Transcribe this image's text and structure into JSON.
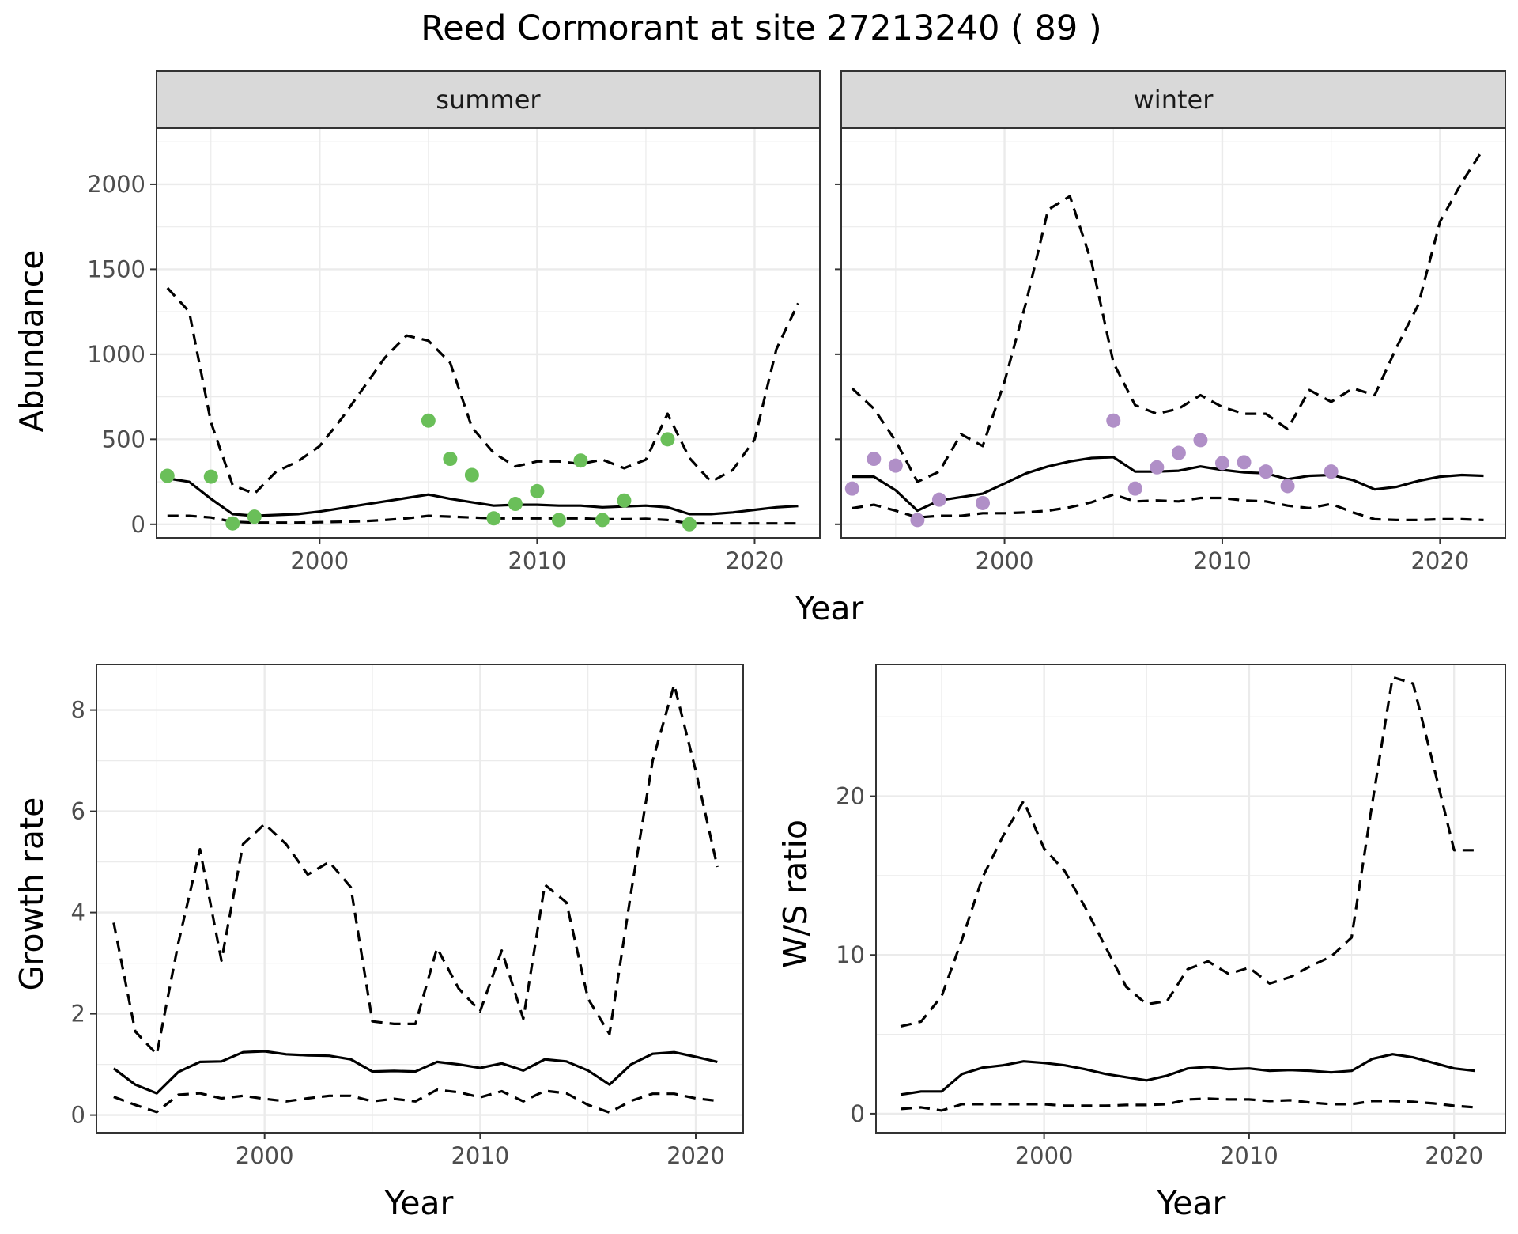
{
  "title": "Reed Cormorant at site 27213240 ( 89 )",
  "chart_data": [
    {
      "type": "line",
      "panel": "summer",
      "facet_label": "summer",
      "xlabel": "",
      "ylabel": "Abundance",
      "xlim": [
        1992.5,
        2023
      ],
      "ylim": [
        -80,
        2330
      ],
      "x_ticks": [
        2000,
        2010,
        2020
      ],
      "y_ticks": [
        0,
        500,
        1000,
        1500,
        2000
      ],
      "grid": true,
      "point_color": "#6abf59",
      "series": [
        {
          "style": "solid",
          "x": [
            1993,
            1994,
            1995,
            1996,
            1997,
            1998,
            1999,
            2000,
            2001,
            2002,
            2003,
            2004,
            2005,
            2006,
            2007,
            2008,
            2009,
            2010,
            2011,
            2012,
            2013,
            2014,
            2015,
            2016,
            2017,
            2018,
            2019,
            2020,
            2021,
            2022
          ],
          "values": [
            270,
            250,
            150,
            60,
            50,
            55,
            60,
            75,
            95,
            115,
            135,
            155,
            175,
            150,
            130,
            110,
            115,
            115,
            110,
            110,
            100,
            105,
            110,
            100,
            60,
            60,
            70,
            85,
            100,
            108
          ]
        },
        {
          "style": "dashed",
          "x": [
            1993,
            1994,
            1995,
            1996,
            1997,
            1998,
            1999,
            2000,
            2001,
            2002,
            2003,
            2004,
            2005,
            2006,
            2007,
            2008,
            2009,
            2010,
            2011,
            2012,
            2013,
            2014,
            2015,
            2016,
            2017,
            2018,
            2019,
            2020,
            2021,
            2022
          ],
          "values": [
            1390,
            1250,
            600,
            230,
            180,
            310,
            370,
            460,
            620,
            800,
            980,
            1110,
            1080,
            950,
            570,
            420,
            340,
            370,
            370,
            355,
            380,
            330,
            380,
            650,
            390,
            250,
            320,
            500,
            1030,
            1300
          ]
        },
        {
          "style": "dashed",
          "x": [
            1993,
            1994,
            1995,
            1996,
            1997,
            1998,
            1999,
            2000,
            2001,
            2002,
            2003,
            2004,
            2005,
            2006,
            2007,
            2008,
            2009,
            2010,
            2011,
            2012,
            2013,
            2014,
            2015,
            2016,
            2017,
            2018,
            2019,
            2020,
            2021,
            2022
          ],
          "values": [
            50,
            50,
            40,
            15,
            10,
            10,
            10,
            12,
            15,
            18,
            25,
            35,
            50,
            45,
            40,
            35,
            35,
            35,
            35,
            35,
            30,
            30,
            32,
            25,
            5,
            5,
            5,
            5,
            5,
            5
          ]
        }
      ],
      "points": {
        "x": [
          1993,
          1995,
          1996,
          1997,
          2005,
          2006,
          2007,
          2008,
          2009,
          2010,
          2011,
          2012,
          2013,
          2014,
          2016,
          2017
        ],
        "values": [
          285,
          280,
          5,
          45,
          610,
          385,
          290,
          35,
          120,
          195,
          25,
          375,
          25,
          140,
          500,
          0
        ]
      }
    },
    {
      "type": "line",
      "panel": "winter",
      "facet_label": "winter",
      "xlabel": "",
      "ylabel": "",
      "xlim": [
        1992.5,
        2023
      ],
      "ylim": [
        -80,
        2330
      ],
      "x_ticks": [
        2000,
        2010,
        2020
      ],
      "y_ticks": [
        0,
        500,
        1000,
        1500,
        2000
      ],
      "grid": true,
      "point_color": "#b08fc7",
      "series": [
        {
          "style": "solid",
          "x": [
            1993,
            1994,
            1995,
            1996,
            1997,
            1998,
            1999,
            2000,
            2001,
            2002,
            2003,
            2004,
            2005,
            2006,
            2007,
            2008,
            2009,
            2010,
            2011,
            2012,
            2013,
            2014,
            2015,
            2016,
            2017,
            2018,
            2019,
            2020,
            2021,
            2022
          ],
          "values": [
            280,
            280,
            200,
            80,
            140,
            160,
            180,
            240,
            300,
            340,
            370,
            390,
            395,
            310,
            310,
            315,
            340,
            320,
            305,
            300,
            265,
            285,
            290,
            260,
            205,
            220,
            255,
            280,
            290,
            285
          ]
        },
        {
          "style": "dashed",
          "x": [
            1993,
            1994,
            1995,
            1996,
            1997,
            1998,
            1999,
            2000,
            2001,
            2002,
            2003,
            2004,
            2005,
            2006,
            2007,
            2008,
            2009,
            2010,
            2011,
            2012,
            2013,
            2014,
            2015,
            2016,
            2017,
            2018,
            2019,
            2020,
            2021,
            2022
          ],
          "values": [
            800,
            680,
            490,
            250,
            310,
            530,
            460,
            840,
            1310,
            1850,
            1930,
            1540,
            950,
            700,
            650,
            680,
            760,
            690,
            650,
            650,
            560,
            790,
            720,
            800,
            760,
            1040,
            1290,
            1780,
            2010,
            2210
          ]
        },
        {
          "style": "dashed",
          "x": [
            1993,
            1994,
            1995,
            1996,
            1997,
            1998,
            1999,
            2000,
            2001,
            2002,
            2003,
            2004,
            2005,
            2006,
            2007,
            2008,
            2009,
            2010,
            2011,
            2012,
            2013,
            2014,
            2015,
            2016,
            2017,
            2018,
            2019,
            2020,
            2021,
            2022
          ],
          "values": [
            95,
            115,
            80,
            40,
            50,
            50,
            65,
            65,
            70,
            80,
            100,
            130,
            175,
            135,
            140,
            135,
            155,
            155,
            140,
            135,
            110,
            95,
            120,
            70,
            30,
            25,
            25,
            30,
            30,
            25
          ]
        }
      ],
      "points": {
        "x": [
          1993,
          1994,
          1995,
          1996,
          1997,
          1999,
          2005,
          2006,
          2007,
          2008,
          2009,
          2010,
          2011,
          2012,
          2013,
          2015
        ],
        "values": [
          210,
          385,
          345,
          25,
          145,
          125,
          610,
          210,
          335,
          420,
          495,
          360,
          365,
          310,
          225,
          310
        ]
      }
    },
    {
      "type": "line",
      "panel": "growth",
      "xlabel": "Year",
      "ylabel": "Growth rate",
      "xlim": [
        1992.2,
        2022.2
      ],
      "ylim": [
        -0.35,
        8.9
      ],
      "x_ticks": [
        2000,
        2010,
        2020
      ],
      "y_ticks": [
        0,
        2,
        4,
        6,
        8
      ],
      "grid": true,
      "series": [
        {
          "style": "solid",
          "x": [
            1993,
            1994,
            1995,
            1996,
            1997,
            1998,
            1999,
            2000,
            2001,
            2002,
            2003,
            2004,
            2005,
            2006,
            2007,
            2008,
            2009,
            2010,
            2011,
            2012,
            2013,
            2014,
            2015,
            2016,
            2017,
            2018,
            2019,
            2020,
            2021
          ],
          "values": [
            0.92,
            0.6,
            0.43,
            0.85,
            1.05,
            1.06,
            1.24,
            1.26,
            1.2,
            1.18,
            1.17,
            1.1,
            0.86,
            0.87,
            0.86,
            1.05,
            1.0,
            0.93,
            1.02,
            0.88,
            1.1,
            1.06,
            0.88,
            0.6,
            1.0,
            1.21,
            1.24,
            1.15,
            1.05
          ]
        },
        {
          "style": "dashed",
          "x": [
            1993,
            1994,
            1995,
            1996,
            1997,
            1998,
            1999,
            2000,
            2001,
            2002,
            2003,
            2004,
            2005,
            2006,
            2007,
            2008,
            2009,
            2010,
            2011,
            2012,
            2013,
            2014,
            2015,
            2016,
            2017,
            2018,
            2019,
            2020,
            2021
          ],
          "values": [
            3.8,
            1.65,
            1.2,
            3.4,
            5.25,
            3.05,
            5.35,
            5.75,
            5.35,
            4.75,
            5.0,
            4.5,
            1.85,
            1.8,
            1.8,
            3.3,
            2.5,
            2.05,
            3.25,
            1.9,
            4.55,
            4.2,
            2.3,
            1.6,
            4.4,
            7.0,
            8.5,
            6.8,
            4.9
          ]
        },
        {
          "style": "dashed",
          "x": [
            1993,
            1994,
            1995,
            1996,
            1997,
            1998,
            1999,
            2000,
            2001,
            2002,
            2003,
            2004,
            2005,
            2006,
            2007,
            2008,
            2009,
            2010,
            2011,
            2012,
            2013,
            2014,
            2015,
            2016,
            2017,
            2018,
            2019,
            2020,
            2021
          ],
          "values": [
            0.36,
            0.2,
            0.06,
            0.4,
            0.43,
            0.33,
            0.38,
            0.32,
            0.27,
            0.33,
            0.38,
            0.38,
            0.27,
            0.32,
            0.27,
            0.5,
            0.45,
            0.35,
            0.47,
            0.27,
            0.48,
            0.43,
            0.2,
            0.05,
            0.28,
            0.42,
            0.42,
            0.33,
            0.28
          ]
        }
      ]
    },
    {
      "type": "line",
      "panel": "ratio",
      "xlabel": "Year",
      "ylabel": "W/S ratio",
      "xlim": [
        1991.8,
        2022.5
      ],
      "ylim": [
        -1.2,
        28.3
      ],
      "x_ticks": [
        2000,
        2010,
        2020
      ],
      "y_ticks": [
        0,
        10,
        20
      ],
      "grid": true,
      "series": [
        {
          "style": "solid",
          "x": [
            1993,
            1994,
            1995,
            1996,
            1997,
            1998,
            1999,
            2000,
            2001,
            2002,
            2003,
            2004,
            2005,
            2006,
            2007,
            2008,
            2009,
            2010,
            2011,
            2012,
            2013,
            2014,
            2015,
            2016,
            2017,
            2018,
            2019,
            2020,
            2021
          ],
          "values": [
            1.2,
            1.4,
            1.4,
            2.5,
            2.9,
            3.05,
            3.3,
            3.2,
            3.05,
            2.8,
            2.5,
            2.3,
            2.1,
            2.4,
            2.85,
            2.95,
            2.8,
            2.85,
            2.7,
            2.75,
            2.7,
            2.6,
            2.7,
            3.45,
            3.75,
            3.55,
            3.2,
            2.85,
            2.7
          ]
        },
        {
          "style": "dashed",
          "x": [
            1993,
            1994,
            1995,
            1996,
            1997,
            1998,
            1999,
            2000,
            2001,
            2002,
            2003,
            2004,
            2005,
            2006,
            2007,
            2008,
            2009,
            2010,
            2011,
            2012,
            2013,
            2014,
            2015,
            2016,
            2017,
            2018,
            2019,
            2020,
            2021
          ],
          "values": [
            5.5,
            5.8,
            7.4,
            11.0,
            14.9,
            17.5,
            19.7,
            16.7,
            15.3,
            13.0,
            10.5,
            8.0,
            6.9,
            7.1,
            9.1,
            9.6,
            8.8,
            9.2,
            8.2,
            8.6,
            9.3,
            9.9,
            11.1,
            19.5,
            27.5,
            27.1,
            21.9,
            16.6,
            16.6
          ]
        },
        {
          "style": "dashed",
          "x": [
            1993,
            1994,
            1995,
            1996,
            1997,
            1998,
            1999,
            2000,
            2001,
            2002,
            2003,
            2004,
            2005,
            2006,
            2007,
            2008,
            2009,
            2010,
            2011,
            2012,
            2013,
            2014,
            2015,
            2016,
            2017,
            2018,
            2019,
            2020,
            2021
          ],
          "values": [
            0.3,
            0.4,
            0.2,
            0.6,
            0.6,
            0.6,
            0.6,
            0.6,
            0.5,
            0.5,
            0.5,
            0.55,
            0.55,
            0.6,
            0.9,
            0.95,
            0.9,
            0.9,
            0.8,
            0.85,
            0.7,
            0.6,
            0.6,
            0.8,
            0.8,
            0.75,
            0.65,
            0.5,
            0.4
          ]
        }
      ]
    }
  ],
  "shared_xlabel_top": "Year"
}
